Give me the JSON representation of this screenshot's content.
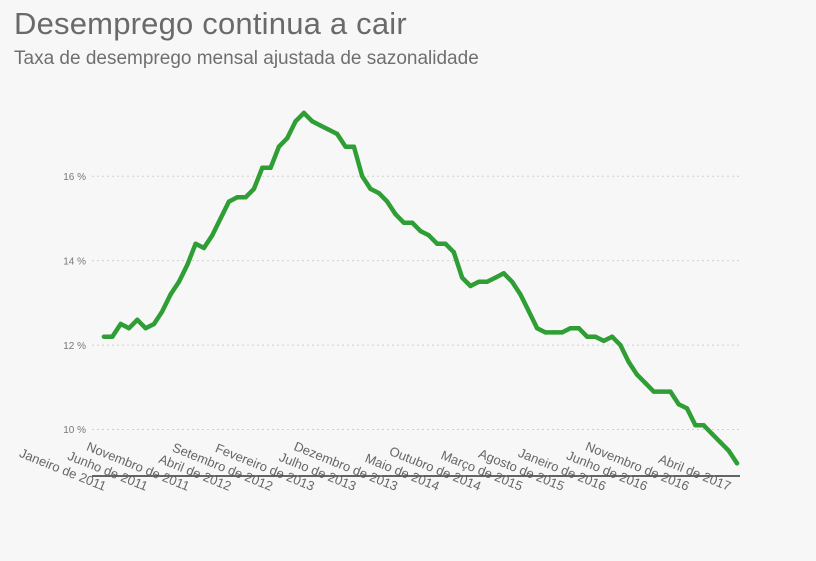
{
  "title": "Desemprego continua a cair",
  "subtitle": "Taxa de desemprego mensal ajustada de sazonalidade",
  "colors": {
    "line": "#2e9e35",
    "grid": "#cfcfcf",
    "axis": "#333333"
  },
  "chart_data": {
    "type": "line",
    "title": "Desemprego continua a cair",
    "subtitle": "Taxa de desemprego mensal ajustada de sazonalidade",
    "xlabel": "",
    "ylabel": "",
    "ylim": [
      8.9,
      17.9
    ],
    "grid": true,
    "y_ticks": [
      {
        "value": 10,
        "label": "10 %"
      },
      {
        "value": 12,
        "label": "12 %"
      },
      {
        "value": 14,
        "label": "14 %"
      },
      {
        "value": 16,
        "label": "16 %"
      }
    ],
    "x_ticks": [
      {
        "date": "2011-01",
        "label": "Janeiro de 2011"
      },
      {
        "date": "2011-06",
        "label": "Junho de 2011"
      },
      {
        "date": "2011-11",
        "label": "Novembro de 2011"
      },
      {
        "date": "2012-04",
        "label": "Abril de 2012"
      },
      {
        "date": "2012-09",
        "label": "Setembro de 2012"
      },
      {
        "date": "2013-02",
        "label": "Fevereiro de 2013"
      },
      {
        "date": "2013-07",
        "label": "Julho de 2013"
      },
      {
        "date": "2013-12",
        "label": "Dezembro de 2013"
      },
      {
        "date": "2014-05",
        "label": "Maio de 2014"
      },
      {
        "date": "2014-10",
        "label": "Outubro de 2014"
      },
      {
        "date": "2015-03",
        "label": "Março de 2015"
      },
      {
        "date": "2015-08",
        "label": "Agosto de 2015"
      },
      {
        "date": "2016-01",
        "label": "Janeiro de 2016"
      },
      {
        "date": "2016-06",
        "label": "Junho de 2016"
      },
      {
        "date": "2016-11",
        "label": "Novembro de 2016"
      },
      {
        "date": "2017-04",
        "label": "Abril de 2017"
      }
    ],
    "series": [
      {
        "color": "#2e9e35",
        "x": [
          "2011-01",
          "2011-02",
          "2011-03",
          "2011-04",
          "2011-05",
          "2011-06",
          "2011-07",
          "2011-08",
          "2011-09",
          "2011-10",
          "2011-11",
          "2011-12",
          "2012-01",
          "2012-02",
          "2012-03",
          "2012-04",
          "2012-05",
          "2012-06",
          "2012-07",
          "2012-08",
          "2012-09",
          "2012-10",
          "2012-11",
          "2012-12",
          "2013-01",
          "2013-02",
          "2013-03",
          "2013-04",
          "2013-05",
          "2013-06",
          "2013-07",
          "2013-08",
          "2013-09",
          "2013-10",
          "2013-11",
          "2013-12",
          "2014-01",
          "2014-02",
          "2014-03",
          "2014-04",
          "2014-05",
          "2014-06",
          "2014-07",
          "2014-08",
          "2014-09",
          "2014-10",
          "2014-11",
          "2014-12",
          "2015-01",
          "2015-02",
          "2015-03",
          "2015-04",
          "2015-05",
          "2015-06",
          "2015-07",
          "2015-08",
          "2015-09",
          "2015-10",
          "2015-11",
          "2015-12",
          "2016-01",
          "2016-02",
          "2016-03",
          "2016-04",
          "2016-05",
          "2016-06",
          "2016-07",
          "2016-08",
          "2016-09",
          "2016-10",
          "2016-11",
          "2016-12",
          "2017-01",
          "2017-02",
          "2017-03",
          "2017-04",
          "2017-05"
        ],
        "values": [
          12.2,
          12.2,
          12.5,
          12.4,
          12.6,
          12.4,
          12.5,
          12.8,
          13.2,
          13.5,
          13.9,
          14.4,
          14.3,
          14.6,
          15.0,
          15.4,
          15.5,
          15.5,
          15.7,
          16.2,
          16.2,
          16.7,
          16.9,
          17.3,
          17.5,
          17.3,
          17.2,
          17.1,
          17.0,
          16.7,
          16.7,
          16.0,
          15.7,
          15.6,
          15.4,
          15.1,
          14.9,
          14.9,
          14.7,
          14.6,
          14.4,
          14.4,
          14.2,
          13.6,
          13.4,
          13.5,
          13.5,
          13.6,
          13.7,
          13.5,
          13.2,
          12.8,
          12.4,
          12.3,
          12.3,
          12.3,
          12.4,
          12.4,
          12.2,
          12.2,
          12.1,
          12.2,
          12.0,
          11.6,
          11.3,
          11.1,
          10.9,
          10.9,
          10.9,
          10.6,
          10.5,
          10.1,
          10.1,
          9.9,
          9.7,
          9.5,
          9.2
        ]
      }
    ]
  }
}
